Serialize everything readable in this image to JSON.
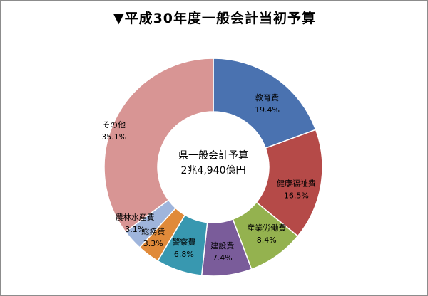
{
  "title": "▼平成30年度一般会計当初予算",
  "center_label": {
    "line1": "県一般会計予算",
    "line2": "2兆4,940億円"
  },
  "chart_data": {
    "type": "pie",
    "variant": "donut",
    "title": "▼平成30年度一般会計当初予算",
    "center_text": [
      "県一般会計予算",
      "2兆4,940億円"
    ],
    "unit": "%",
    "slices": [
      {
        "name": "教育費",
        "value": 19.4,
        "label": "19.4%",
        "color": "#4a72b0"
      },
      {
        "name": "健康福祉費",
        "value": 16.5,
        "label": "16.5%",
        "color": "#b54a48"
      },
      {
        "name": "産業労働費",
        "value": 8.4,
        "label": "8.4%",
        "color": "#94b24f"
      },
      {
        "name": "建設費",
        "value": 7.4,
        "label": "7.4%",
        "color": "#7a5c9a"
      },
      {
        "name": "警察費",
        "value": 6.8,
        "label": "6.8%",
        "color": "#3898b0"
      },
      {
        "name": "総務費",
        "value": 3.3,
        "label": "3.3%",
        "color": "#e08a3a"
      },
      {
        "name": "農林水産費",
        "value": 3.1,
        "label": "3.1%",
        "color": "#9fb5dc"
      },
      {
        "name": "その他",
        "value": 35.1,
        "label": "35.1%",
        "color": "#d89594"
      }
    ],
    "start_angle": "12 o'clock",
    "direction": "clockwise",
    "legend": "none",
    "labels": "on-slice"
  }
}
